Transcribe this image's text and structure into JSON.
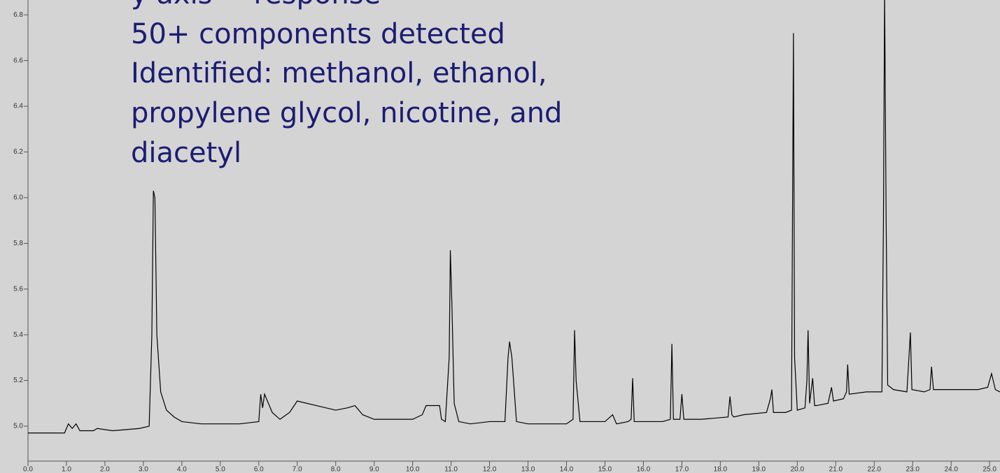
{
  "chart_data": {
    "type": "line",
    "annotations": [
      "y axis = response",
      "50+ components detected",
      "Identified: methanol, ethanol,",
      "propylene glycol, nicotine, and",
      "diacetyl"
    ],
    "x": [
      0,
      0.95,
      1.05,
      1.15,
      1.25,
      1.35,
      1.5,
      1.7,
      1.8,
      2.2,
      2.9,
      3.15,
      3.22,
      3.26,
      3.3,
      3.35,
      3.45,
      3.6,
      3.8,
      4.0,
      4.5,
      5.0,
      5.5,
      6.0,
      6.05,
      6.1,
      6.15,
      6.2,
      6.35,
      6.55,
      6.8,
      7.0,
      7.5,
      8.0,
      8.3,
      8.5,
      8.7,
      9.0,
      9.5,
      10.0,
      10.25,
      10.35,
      10.7,
      10.75,
      10.85,
      10.95,
      10.98,
      11.02,
      11.08,
      11.2,
      11.5,
      12.0,
      12.4,
      12.48,
      12.52,
      12.58,
      12.7,
      13.0,
      13.5,
      14.0,
      14.17,
      14.21,
      14.25,
      14.35,
      15.0,
      15.2,
      15.3,
      15.6,
      15.68,
      15.72,
      15.76,
      16.5,
      16.7,
      16.74,
      16.78,
      16.95,
      17.0,
      17.05,
      17.1,
      17.5,
      18.2,
      18.25,
      18.3,
      18.35,
      18.6,
      19.2,
      19.3,
      19.34,
      19.38,
      19.7,
      19.85,
      19.9,
      19.93,
      20.0,
      20.2,
      20.25,
      20.28,
      20.32,
      20.4,
      20.45,
      20.5,
      20.8,
      20.89,
      20.94,
      21.2,
      21.28,
      21.31,
      21.35,
      21.8,
      22.2,
      22.24,
      22.27,
      22.31,
      22.35,
      22.5,
      22.85,
      22.94,
      22.98,
      23.3,
      23.45,
      23.49,
      23.54,
      24.0,
      24.7,
      24.95,
      25.05,
      25.15,
      25.27
    ],
    "values": [
      4.97,
      4.97,
      5.01,
      4.99,
      5.01,
      4.98,
      4.98,
      4.98,
      4.99,
      4.98,
      4.99,
      5.0,
      5.4,
      6.03,
      6.0,
      5.4,
      5.15,
      5.07,
      5.04,
      5.02,
      5.01,
      5.01,
      5.01,
      5.02,
      5.14,
      5.08,
      5.14,
      5.12,
      5.06,
      5.03,
      5.06,
      5.11,
      5.09,
      5.07,
      5.08,
      5.09,
      5.05,
      5.03,
      5.03,
      5.03,
      5.05,
      5.09,
      5.09,
      5.03,
      5.02,
      5.3,
      5.77,
      5.54,
      5.1,
      5.02,
      5.01,
      5.02,
      5.02,
      5.3,
      5.37,
      5.3,
      5.02,
      5.01,
      5.01,
      5.01,
      5.03,
      5.42,
      5.2,
      5.02,
      5.02,
      5.05,
      5.01,
      5.02,
      5.03,
      5.21,
      5.02,
      5.02,
      5.03,
      5.36,
      5.03,
      5.03,
      5.14,
      5.03,
      5.03,
      5.03,
      5.04,
      5.13,
      5.05,
      5.04,
      5.05,
      5.06,
      5.12,
      5.16,
      5.06,
      5.06,
      5.07,
      6.72,
      5.3,
      5.07,
      5.08,
      5.2,
      5.42,
      5.1,
      5.21,
      5.09,
      5.09,
      5.1,
      5.17,
      5.11,
      5.12,
      5.15,
      5.27,
      5.14,
      5.15,
      5.15,
      5.9,
      6.9,
      5.9,
      5.18,
      5.16,
      5.15,
      5.41,
      5.16,
      5.15,
      5.16,
      5.26,
      5.16,
      5.16,
      5.16,
      5.17,
      5.23,
      5.16,
      5.15
    ],
    "color": "#000000",
    "xlim": [
      0,
      25.27
    ],
    "ylim": [
      4.847,
      6.865
    ],
    "xticks": [
      {
        "value": 0,
        "label": "0.0"
      },
      {
        "value": 1,
        "label": "1.0"
      },
      {
        "value": 2,
        "label": "2.0"
      },
      {
        "value": 3,
        "label": "3.0"
      },
      {
        "value": 4,
        "label": "4.0"
      },
      {
        "value": 5,
        "label": "5.0"
      },
      {
        "value": 6,
        "label": "6.0"
      },
      {
        "value": 7,
        "label": "7.0"
      },
      {
        "value": 8,
        "label": "8.0"
      },
      {
        "value": 9,
        "label": "9.0"
      },
      {
        "value": 10,
        "label": "10.0"
      },
      {
        "value": 11,
        "label": "11.0"
      },
      {
        "value": 12,
        "label": "12.0"
      },
      {
        "value": 13,
        "label": "13.0"
      },
      {
        "value": 14,
        "label": "14.0"
      },
      {
        "value": 15,
        "label": "15.0"
      },
      {
        "value": 16,
        "label": "16.0"
      },
      {
        "value": 17,
        "label": "17.0"
      },
      {
        "value": 18,
        "label": "18.0"
      },
      {
        "value": 19,
        "label": "19.0"
      },
      {
        "value": 20,
        "label": "20.0"
      },
      {
        "value": 21,
        "label": "21.0"
      },
      {
        "value": 22,
        "label": "22.0"
      },
      {
        "value": 23,
        "label": "23.0"
      },
      {
        "value": 24,
        "label": "24.0"
      },
      {
        "value": 25,
        "label": "25.0"
      }
    ],
    "yticks": [
      {
        "value": 5,
        "label": "5.0"
      },
      5.2,
      5.4,
      5.6,
      5.8,
      {
        "value": 6,
        "label": "6.0"
      },
      6.2,
      6.4,
      6.6,
      6.8
    ]
  }
}
